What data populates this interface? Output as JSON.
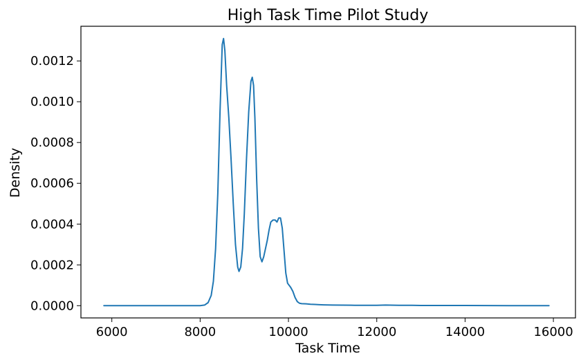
{
  "chart_data": {
    "type": "line",
    "title": "High Task Time Pilot Study",
    "xlabel": "Task Time",
    "ylabel": "Density",
    "xlim": [
      5300,
      16500
    ],
    "ylim": [
      -6e-05,
      0.00137
    ],
    "xticks": [
      6000,
      8000,
      10000,
      12000,
      14000,
      16000
    ],
    "xtick_labels": [
      "6000",
      "8000",
      "10000",
      "12000",
      "14000",
      "16000"
    ],
    "yticks": [
      0.0,
      0.0002,
      0.0004,
      0.0006,
      0.0008,
      0.001,
      0.0012
    ],
    "ytick_labels": [
      "0.0000",
      "0.0002",
      "0.0004",
      "0.0006",
      "0.0008",
      "0.0010",
      "0.0012"
    ],
    "grid": false,
    "legend": "none",
    "line_color": "#1f77b4",
    "series": [
      {
        "x": [
          5820,
          6500,
          7000,
          7500,
          8000,
          8100,
          8180,
          8250,
          8300,
          8350,
          8400,
          8450,
          8500,
          8530,
          8560,
          8600,
          8650,
          8700,
          8750,
          8800,
          8850,
          8880,
          8920,
          8960,
          9000,
          9050,
          9100,
          9150,
          9180,
          9210,
          9240,
          9280,
          9320,
          9360,
          9400,
          9440,
          9480,
          9520,
          9560,
          9600,
          9650,
          9700,
          9740,
          9780,
          9820,
          9860,
          9900,
          9940,
          9980,
          10050,
          10100,
          10150,
          10200,
          10250,
          10300,
          10400,
          10500,
          10600,
          10700,
          10800,
          11000,
          11500,
          12000,
          12200,
          12500,
          12800,
          13000,
          13400,
          14000,
          15000,
          15900
        ],
        "y": [
          0.0,
          0.0,
          0.0,
          0.0,
          0.0,
          3e-06,
          1.5e-05,
          5e-05,
          0.00012,
          0.00028,
          0.00055,
          0.00095,
          0.00128,
          0.00131,
          0.00125,
          0.00108,
          0.00092,
          0.00072,
          0.0005,
          0.0003,
          0.00019,
          0.000168,
          0.00019,
          0.00028,
          0.00045,
          0.00072,
          0.00095,
          0.0011,
          0.00112,
          0.00108,
          0.00092,
          0.00062,
          0.00038,
          0.00024,
          0.000215,
          0.00024,
          0.00028,
          0.00032,
          0.00037,
          0.00041,
          0.00042,
          0.00042,
          0.00041,
          0.00043,
          0.00043,
          0.00038,
          0.00027,
          0.00016,
          0.00011,
          9e-05,
          7e-05,
          4e-05,
          2e-05,
          1.2e-05,
          1e-05,
          9e-06,
          7e-06,
          6e-06,
          5e-06,
          4e-06,
          3e-06,
          2e-06,
          2e-06,
          3e-06,
          2e-06,
          2e-06,
          1e-06,
          1e-06,
          1e-06,
          0.0,
          0.0
        ]
      }
    ]
  }
}
